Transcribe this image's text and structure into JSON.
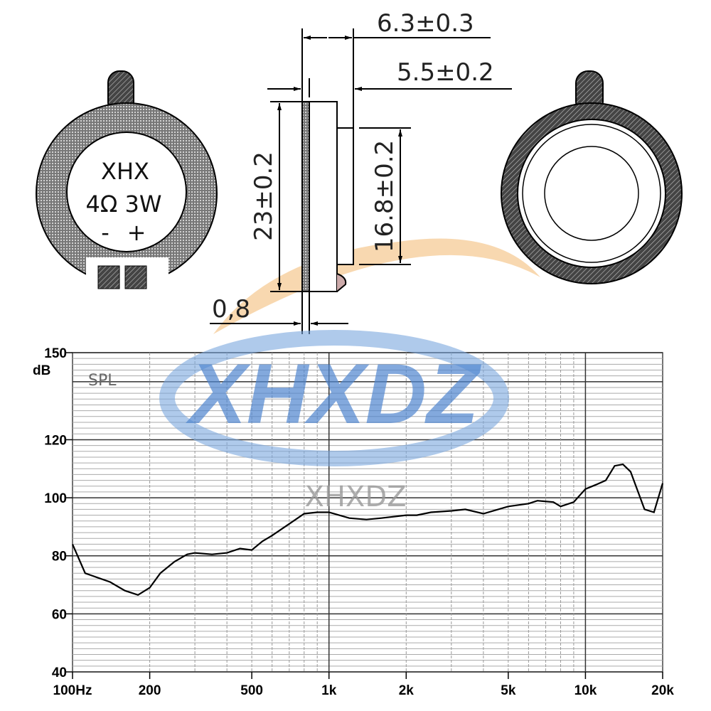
{
  "drawing": {
    "front_label": {
      "brand": "XHX",
      "spec": "4Ω 3W",
      "minus": "-",
      "plus": "+"
    },
    "dimensions": {
      "total_depth": "6.3±0.3",
      "body_depth": "5.5±0.2",
      "outer_diameter": "23±0.2",
      "boss_diameter": "16.8±0.2",
      "plate_thickness": "0,8"
    },
    "watermark": "XHXDZ",
    "watermark_small": "XHXDZ",
    "colors": {
      "watermark_blue": "#4f86d0",
      "watermark_orange": "#f0a040",
      "line": "#111111"
    }
  },
  "chart_data": {
    "type": "line",
    "title": "SPL",
    "ylabel": "dB",
    "xlabel": "",
    "x_scale": "log",
    "xlim": [
      100,
      20000
    ],
    "ylim": [
      40,
      150
    ],
    "grid": true,
    "x_ticks": [
      {
        "value": 100,
        "label": "100Hz"
      },
      {
        "value": 200,
        "label": "200"
      },
      {
        "value": 500,
        "label": "500"
      },
      {
        "value": 1000,
        "label": "1k"
      },
      {
        "value": 2000,
        "label": "2k"
      },
      {
        "value": 5000,
        "label": "5k"
      },
      {
        "value": 10000,
        "label": "10k"
      },
      {
        "value": 20000,
        "label": "20k"
      }
    ],
    "y_ticks": [
      {
        "value": 150,
        "label": "150"
      },
      {
        "value": 120,
        "label": "120"
      },
      {
        "value": 100,
        "label": "100"
      },
      {
        "value": 80,
        "label": "80"
      },
      {
        "value": 60,
        "label": "60"
      },
      {
        "value": 40,
        "label": "40"
      }
    ],
    "series": [
      {
        "x": [
          100,
          112,
          125,
          140,
          160,
          180,
          200,
          220,
          250,
          280,
          300,
          350,
          400,
          450,
          500,
          550,
          600,
          700,
          800,
          900,
          1000,
          1200,
          1400,
          1600,
          2000,
          2200,
          2500,
          3000,
          3400,
          4000,
          5000,
          6000,
          6500,
          7500,
          8000,
          9000,
          10000,
          11000,
          12000,
          13000,
          14000,
          15000,
          17000,
          18500,
          20000
        ],
        "y": [
          84,
          74,
          72.5,
          71,
          68,
          66.5,
          69,
          74,
          78,
          80.5,
          81,
          80.5,
          81,
          82.5,
          82,
          85,
          87,
          91,
          94.5,
          95,
          95,
          93,
          92.5,
          93,
          94,
          94,
          95,
          95.5,
          96,
          94.5,
          97,
          98,
          99,
          98.5,
          97,
          98.5,
          103,
          104.5,
          106,
          111,
          111.5,
          109,
          96,
          95,
          105
        ]
      }
    ]
  }
}
